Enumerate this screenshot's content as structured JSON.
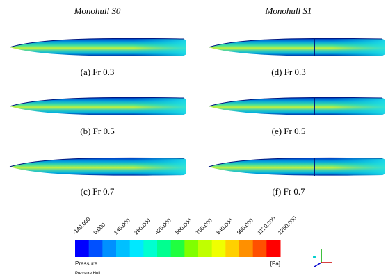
{
  "columns": [
    {
      "title": "Monohull S0",
      "captions": [
        "(a) Fr 0.3",
        "(b) Fr 0.5",
        "(c) Fr 0.7"
      ]
    },
    {
      "title": "Monohull S1",
      "captions": [
        "(d) Fr 0.3",
        "(e) Fr 0.5",
        "(f) Fr 0.7"
      ]
    }
  ],
  "colorbar": {
    "ticks": [
      "-140.000",
      "0.000",
      "140.000",
      "280.000",
      "420.000",
      "560.000",
      "700.000",
      "840.000",
      "980.000",
      "1120.000",
      "1260.000"
    ],
    "label": "Pressure",
    "unit": "[Pa]",
    "subtitle": "Pressure Hull"
  }
}
